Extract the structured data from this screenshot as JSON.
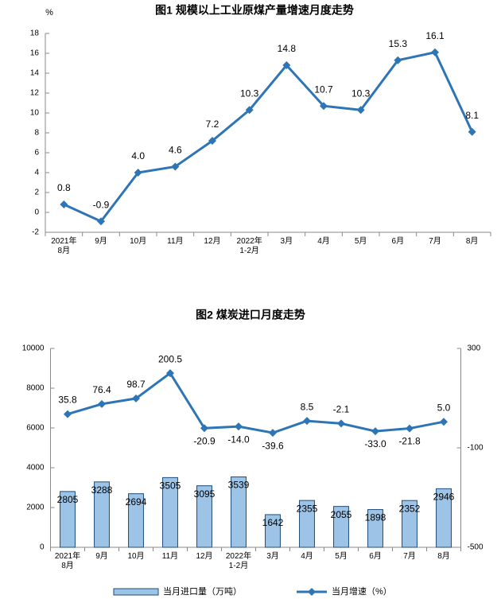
{
  "chart_data": [
    {
      "type": "line",
      "title": "图1  规模以上工业原煤产量增速月度走势",
      "unit": "%",
      "categories": [
        "2021年\n8月",
        "9月",
        "10月",
        "11月",
        "12月",
        "2022年\n1-2月",
        "3月",
        "4月",
        "5月",
        "6月",
        "7月",
        "8月"
      ],
      "values": [
        0.8,
        -0.9,
        4.0,
        4.6,
        7.2,
        10.3,
        14.8,
        10.7,
        10.3,
        15.3,
        16.1,
        8.1
      ],
      "value_labels": [
        "0.8",
        "-0.9",
        "4.0",
        "4.6",
        "7.2",
        "10.3",
        "14.8",
        "10.7",
        "10.3",
        "15.3",
        "16.1",
        "8.1"
      ],
      "color": "#2e75b6",
      "ylim": [
        -2,
        18
      ],
      "yticks": [
        -2,
        0,
        2,
        4,
        6,
        8,
        10,
        12,
        14,
        16,
        18
      ]
    },
    {
      "type": "combo",
      "title": "图2  煤炭进口月度走势",
      "categories": [
        "2021年\n8月",
        "9月",
        "10月",
        "11月",
        "12月",
        "2022年\n1-2月",
        "3月",
        "4月",
        "5月",
        "6月",
        "7月",
        "8月"
      ],
      "series": [
        {
          "name": "当月进口量（万吨）",
          "type": "bar",
          "color": "#9dc3e6",
          "values": [
            2805,
            3288,
            2694,
            3505,
            3095,
            3539,
            1642,
            2355,
            2055,
            1898,
            2352,
            2946
          ]
        },
        {
          "name": "当月增速（%）",
          "type": "line",
          "axis": "y2",
          "color": "#2e75b6",
          "values": [
            35.8,
            76.4,
            98.7,
            200.5,
            -20.9,
            -14.0,
            -39.6,
            8.5,
            -2.1,
            -33.0,
            -21.8,
            5.0
          ],
          "value_labels": [
            "35.8",
            "76.4",
            "98.7",
            "200.5",
            "-20.9",
            "-14.0",
            "-39.6",
            "8.5",
            "-2.1",
            "-33.0",
            "-21.8",
            "5.0"
          ]
        }
      ],
      "ylim": [
        0,
        10000
      ],
      "yticks": [
        0,
        2000,
        4000,
        6000,
        8000,
        10000
      ],
      "y2lim": [
        -500,
        300
      ],
      "y2ticks": [
        -500,
        -100,
        300
      ],
      "legend": "bottom"
    }
  ]
}
